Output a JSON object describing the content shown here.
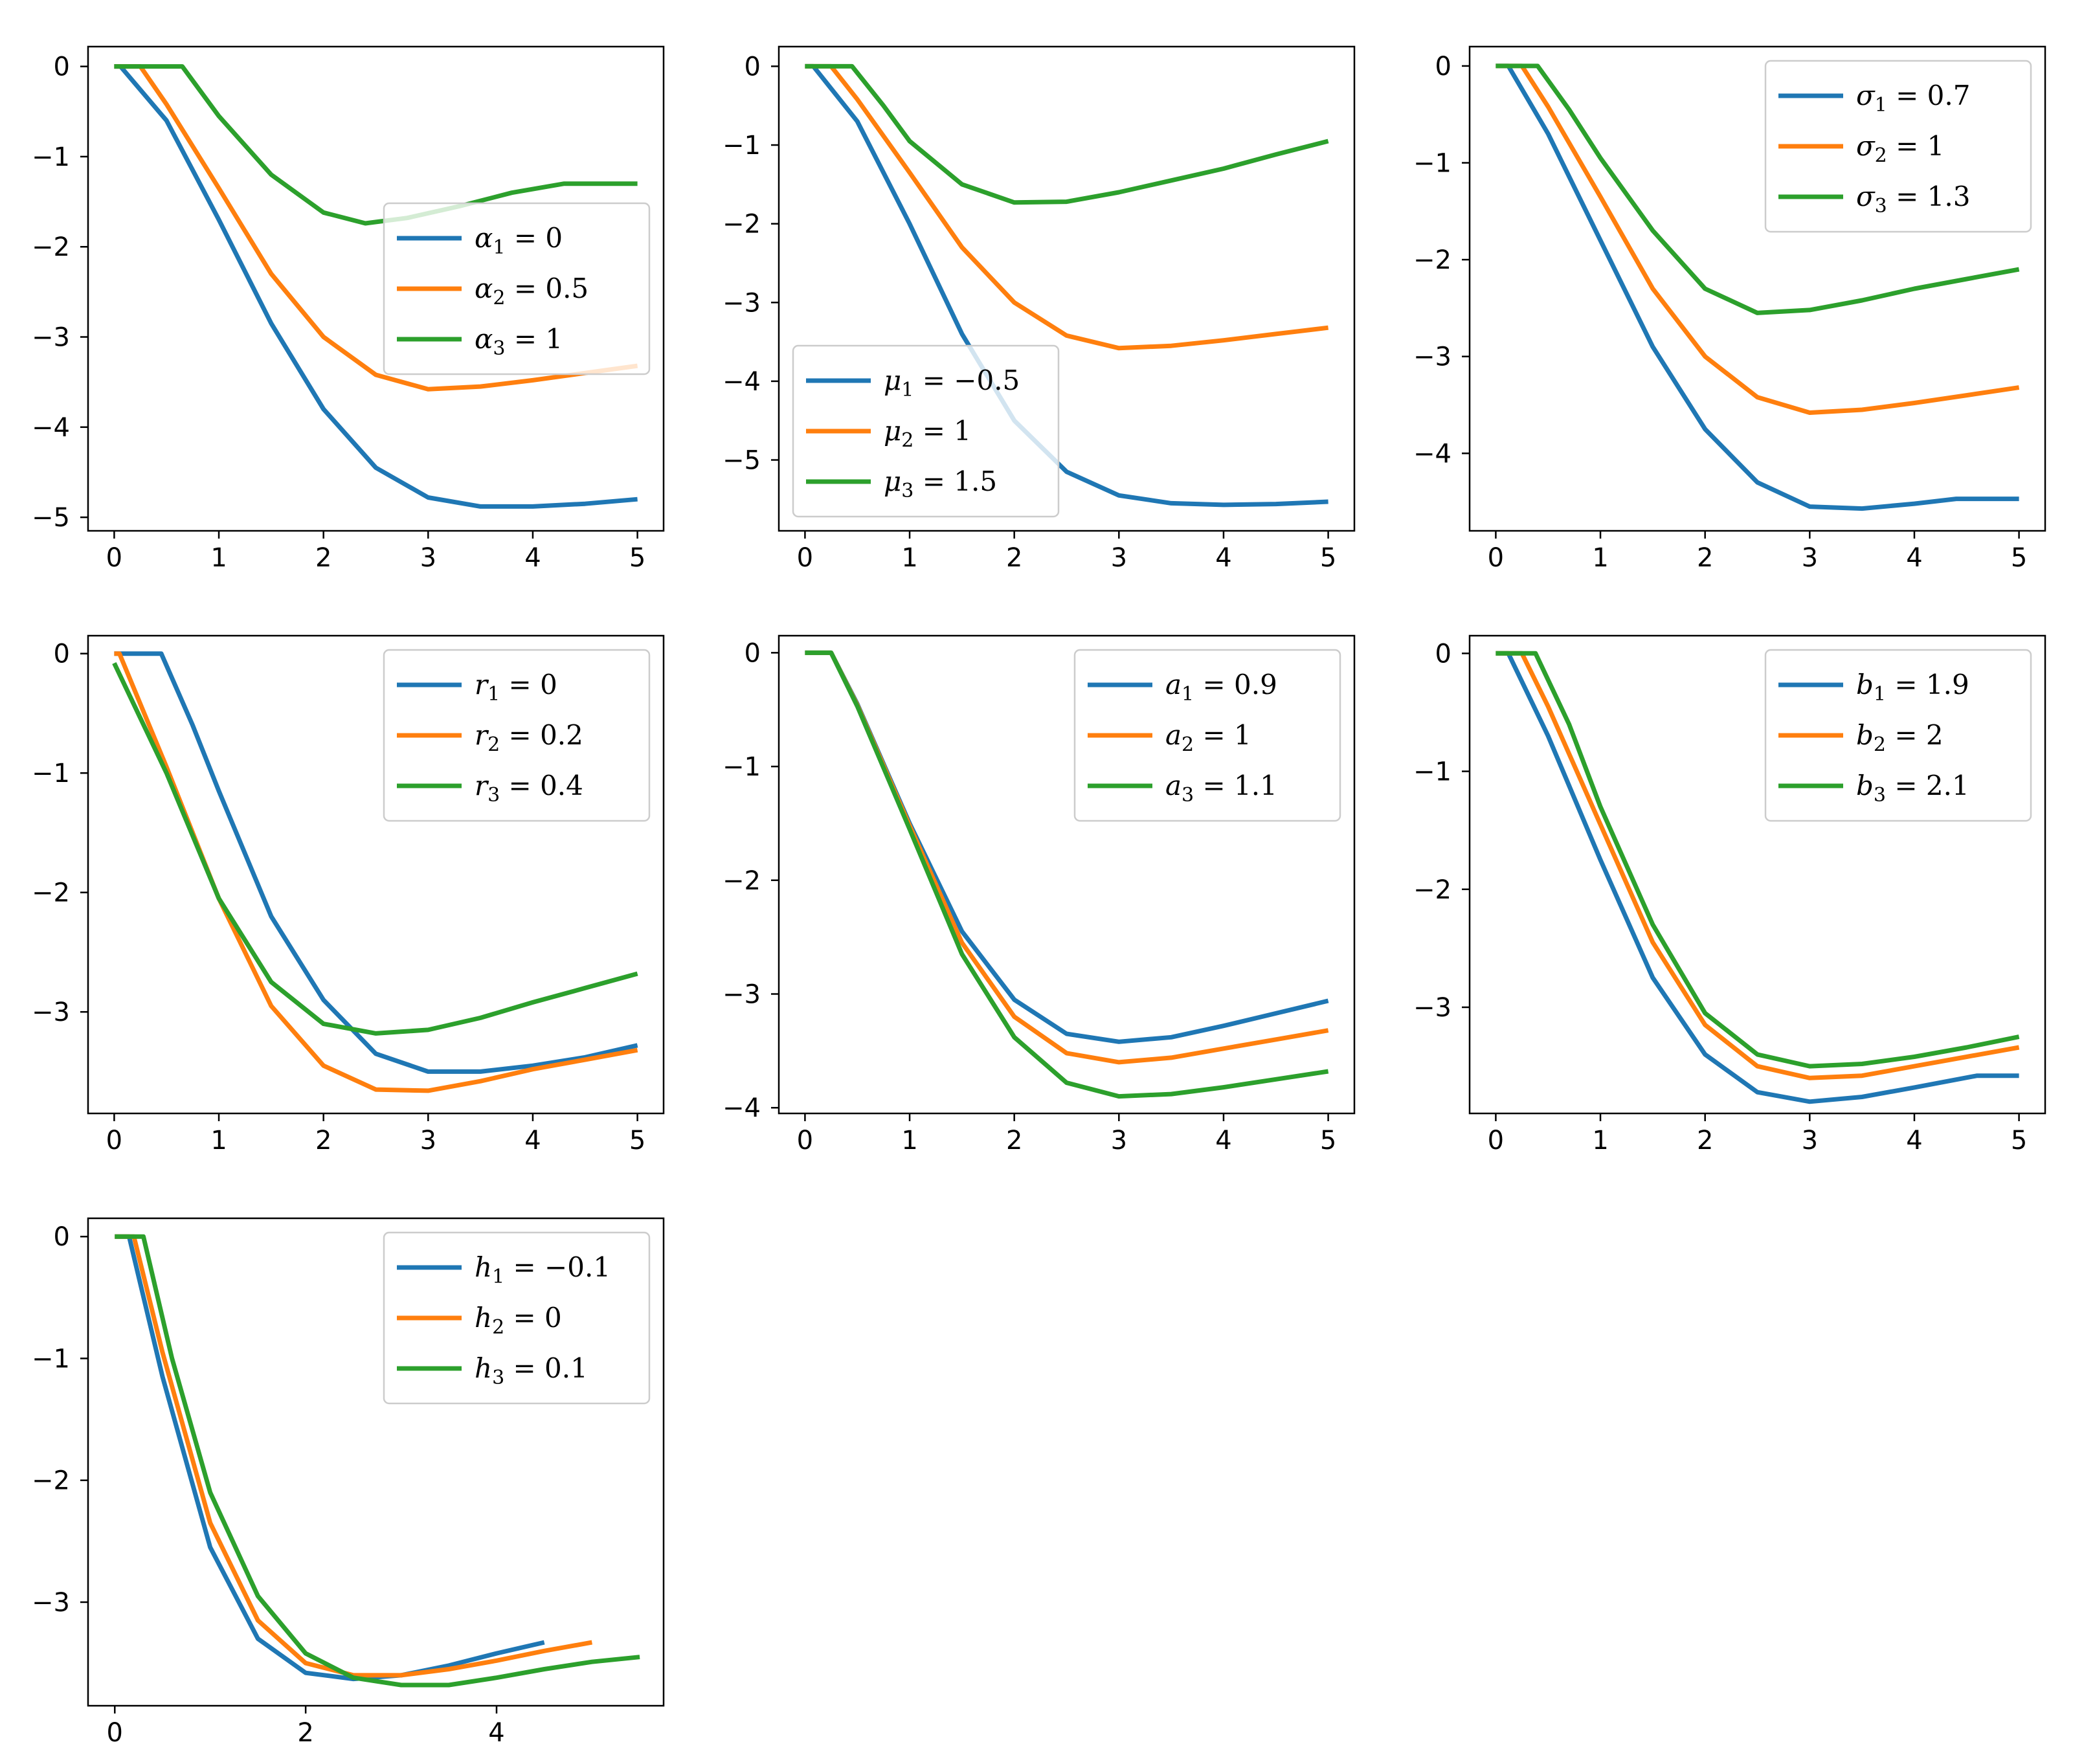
{
  "colors": {
    "series1": "#1f77b4",
    "series2": "#ff7f0e",
    "series3": "#2ca02c"
  },
  "chart_data": [
    {
      "type": "line",
      "id": "alpha",
      "xlim": [
        -0.25,
        5.25
      ],
      "ylim": [
        -5.15,
        0.22
      ],
      "xticks": [
        0,
        1,
        2,
        3,
        4,
        5
      ],
      "xtick_labels": [
        "0",
        "1",
        "2",
        "3",
        "4",
        "5"
      ],
      "yticks": [
        0,
        -1,
        -2,
        -3,
        -4,
        -5
      ],
      "ytick_labels": [
        "0",
        "−1",
        "−2",
        "−3",
        "−4",
        "−5"
      ],
      "legend_loc": "center-right",
      "series": [
        {
          "name": "α₁ = 0",
          "sym": "α",
          "sub": "1",
          "value": "0",
          "x": [
            0,
            0.06,
            0.5,
            1,
            1.5,
            2,
            2.5,
            3,
            3.5,
            4,
            4.5,
            5
          ],
          "y": [
            0,
            0,
            -0.6,
            -1.7,
            -2.85,
            -3.8,
            -4.45,
            -4.78,
            -4.88,
            -4.88,
            -4.85,
            -4.8
          ]
        },
        {
          "name": "α₂ = 0.5",
          "sym": "α",
          "sub": "2",
          "value": "0.5",
          "x": [
            0,
            0.25,
            0.5,
            1,
            1.5,
            2,
            2.5,
            3,
            3.5,
            4,
            4.5,
            5
          ],
          "y": [
            0,
            0,
            -0.42,
            -1.35,
            -2.3,
            -3.0,
            -3.42,
            -3.58,
            -3.55,
            -3.48,
            -3.4,
            -3.32
          ]
        },
        {
          "name": "α₃ = 1",
          "sym": "α",
          "sub": "3",
          "value": "1",
          "x": [
            0,
            0.65,
            1,
            1.5,
            2,
            2.4,
            2.8,
            3.3,
            3.8,
            4.3,
            4.6,
            5
          ],
          "y": [
            0,
            0,
            -0.55,
            -1.2,
            -1.62,
            -1.74,
            -1.68,
            -1.55,
            -1.4,
            -1.3,
            -1.3,
            -1.3
          ]
        }
      ]
    },
    {
      "type": "line",
      "id": "mu",
      "xlim": [
        -0.25,
        5.25
      ],
      "ylim": [
        -5.9,
        0.25
      ],
      "xticks": [
        0,
        1,
        2,
        3,
        4,
        5
      ],
      "xtick_labels": [
        "0",
        "1",
        "2",
        "3",
        "4",
        "5"
      ],
      "yticks": [
        0,
        -1,
        -2,
        -3,
        -4,
        -5
      ],
      "ytick_labels": [
        "0",
        "−1",
        "−2",
        "−3",
        "−4",
        "−5"
      ],
      "legend_loc": "lower-left",
      "series": [
        {
          "name": "μ₁ = −0.5",
          "sym": "μ",
          "sub": "1",
          "value": "−0.5",
          "x": [
            0,
            0.08,
            0.5,
            1,
            1.5,
            2,
            2.5,
            3,
            3.5,
            4,
            4.5,
            5
          ],
          "y": [
            0,
            0,
            -0.7,
            -2.0,
            -3.4,
            -4.5,
            -5.15,
            -5.45,
            -5.55,
            -5.57,
            -5.56,
            -5.53
          ]
        },
        {
          "name": "μ₂ = 1",
          "sym": "μ",
          "sub": "2",
          "value": "1",
          "x": [
            0,
            0.25,
            0.5,
            1,
            1.5,
            2,
            2.5,
            3,
            3.5,
            4,
            4.5,
            5
          ],
          "y": [
            0,
            0,
            -0.42,
            -1.35,
            -2.3,
            -3.0,
            -3.42,
            -3.58,
            -3.55,
            -3.48,
            -3.4,
            -3.32
          ]
        },
        {
          "name": "μ₃ = 1.5",
          "sym": "μ",
          "sub": "3",
          "value": "1.5",
          "x": [
            0,
            0.45,
            0.75,
            1,
            1.5,
            2,
            2.5,
            3,
            3.5,
            4,
            4.5,
            5
          ],
          "y": [
            0,
            0,
            -0.5,
            -0.95,
            -1.5,
            -1.73,
            -1.72,
            -1.6,
            -1.45,
            -1.3,
            -1.12,
            -0.95
          ]
        }
      ]
    },
    {
      "type": "line",
      "id": "sigma",
      "xlim": [
        -0.25,
        5.25
      ],
      "ylim": [
        -4.8,
        0.2
      ],
      "xticks": [
        0,
        1,
        2,
        3,
        4,
        5
      ],
      "xtick_labels": [
        "0",
        "1",
        "2",
        "3",
        "4",
        "5"
      ],
      "yticks": [
        0,
        -1,
        -2,
        -3,
        -4
      ],
      "ytick_labels": [
        "0",
        "−1",
        "−2",
        "−3",
        "−4"
      ],
      "legend_loc": "upper-right",
      "series": [
        {
          "name": "σ₁ = 0.7",
          "sym": "σ",
          "sub": "1",
          "value": "0.7",
          "x": [
            0,
            0.12,
            0.5,
            1,
            1.5,
            2,
            2.5,
            3,
            3.5,
            4,
            4.4,
            5
          ],
          "y": [
            0,
            0,
            -0.7,
            -1.8,
            -2.9,
            -3.75,
            -4.3,
            -4.55,
            -4.57,
            -4.52,
            -4.47,
            -4.47
          ]
        },
        {
          "name": "σ₂ = 1",
          "sym": "σ",
          "sub": "2",
          "value": "1",
          "x": [
            0,
            0.25,
            0.5,
            1,
            1.5,
            2,
            2.5,
            3,
            3.5,
            4,
            4.5,
            5
          ],
          "y": [
            0,
            0,
            -0.42,
            -1.35,
            -2.3,
            -3.0,
            -3.42,
            -3.58,
            -3.55,
            -3.48,
            -3.4,
            -3.32
          ]
        },
        {
          "name": "σ₃ = 1.3",
          "sym": "σ",
          "sub": "3",
          "value": "1.3",
          "x": [
            0,
            0.4,
            0.7,
            1,
            1.5,
            2,
            2.5,
            3,
            3.5,
            4,
            4.5,
            5
          ],
          "y": [
            0,
            0,
            -0.45,
            -0.95,
            -1.7,
            -2.3,
            -2.55,
            -2.52,
            -2.42,
            -2.3,
            -2.2,
            -2.1
          ]
        }
      ]
    },
    {
      "type": "line",
      "id": "r",
      "xlim": [
        -0.25,
        5.25
      ],
      "ylim": [
        -3.85,
        0.15
      ],
      "xticks": [
        0,
        1,
        2,
        3,
        4,
        5
      ],
      "xtick_labels": [
        "0",
        "1",
        "2",
        "3",
        "4",
        "5"
      ],
      "yticks": [
        0,
        -1,
        -2,
        -3
      ],
      "ytick_labels": [
        "0",
        "−1",
        "−2",
        "−3"
      ],
      "legend_loc": "upper-right",
      "series": [
        {
          "name": "r₁ = 0",
          "sym": "r",
          "sub": "1",
          "value": "0",
          "x": [
            0,
            0.45,
            0.75,
            1,
            1.5,
            2,
            2.5,
            3,
            3.5,
            4,
            4.5,
            5
          ],
          "y": [
            0,
            0,
            -0.6,
            -1.15,
            -2.2,
            -2.9,
            -3.35,
            -3.5,
            -3.5,
            -3.45,
            -3.38,
            -3.28
          ]
        },
        {
          "name": "r₂ = 0.2",
          "sym": "r",
          "sub": "2",
          "value": "0.2",
          "x": [
            0,
            0.05,
            0.5,
            1,
            1.5,
            2,
            2.5,
            3,
            3.5,
            4,
            4.5,
            5
          ],
          "y": [
            0,
            0,
            -0.95,
            -2.05,
            -2.95,
            -3.45,
            -3.65,
            -3.66,
            -3.58,
            -3.48,
            -3.4,
            -3.32
          ]
        },
        {
          "name": "r₃ = 0.4",
          "sym": "r",
          "sub": "3",
          "value": "0.4",
          "x": [
            0,
            0.5,
            1,
            1.5,
            2,
            2.5,
            3,
            3.5,
            4,
            4.5,
            5
          ],
          "y": [
            -0.08,
            -1.0,
            -2.05,
            -2.75,
            -3.1,
            -3.18,
            -3.15,
            -3.05,
            -2.92,
            -2.8,
            -2.68
          ]
        }
      ]
    },
    {
      "type": "line",
      "id": "a",
      "xlim": [
        -0.25,
        5.25
      ],
      "ylim": [
        -4.05,
        0.15
      ],
      "xticks": [
        0,
        1,
        2,
        3,
        4,
        5
      ],
      "xtick_labels": [
        "0",
        "1",
        "2",
        "3",
        "4",
        "5"
      ],
      "yticks": [
        0,
        -1,
        -2,
        -3,
        -4
      ],
      "ytick_labels": [
        "0",
        "−1",
        "−2",
        "−3",
        "−4"
      ],
      "legend_loc": "upper-right",
      "series": [
        {
          "name": "a₁ = 0.9",
          "sym": "a",
          "sub": "1",
          "value": "0.9",
          "x": [
            0,
            0.25,
            0.5,
            1,
            1.5,
            2,
            2.5,
            3,
            3.5,
            4,
            4.5,
            5
          ],
          "y": [
            0,
            0,
            -0.45,
            -1.5,
            -2.45,
            -3.05,
            -3.35,
            -3.42,
            -3.38,
            -3.28,
            -3.17,
            -3.06
          ]
        },
        {
          "name": "a₂ = 1",
          "sym": "a",
          "sub": "2",
          "value": "1",
          "x": [
            0,
            0.25,
            0.5,
            1,
            1.5,
            2,
            2.5,
            3,
            3.5,
            4,
            4.5,
            5
          ],
          "y": [
            0,
            0,
            -0.46,
            -1.52,
            -2.55,
            -3.2,
            -3.52,
            -3.6,
            -3.56,
            -3.48,
            -3.4,
            -3.32
          ]
        },
        {
          "name": "a₃ = 1.1",
          "sym": "a",
          "sub": "3",
          "value": "1.1",
          "x": [
            0,
            0.25,
            0.5,
            1,
            1.5,
            2,
            2.5,
            3,
            3.5,
            4,
            4.5,
            5
          ],
          "y": [
            0,
            0,
            -0.47,
            -1.55,
            -2.65,
            -3.38,
            -3.78,
            -3.9,
            -3.88,
            -3.82,
            -3.75,
            -3.68
          ]
        }
      ]
    },
    {
      "type": "line",
      "id": "b",
      "xlim": [
        -0.25,
        5.25
      ],
      "ylim": [
        -3.9,
        0.15
      ],
      "xticks": [
        0,
        1,
        2,
        3,
        4,
        5
      ],
      "xtick_labels": [
        "0",
        "1",
        "2",
        "3",
        "4",
        "5"
      ],
      "yticks": [
        0,
        -1,
        -2,
        -3
      ],
      "ytick_labels": [
        "0",
        "−1",
        "−2",
        "−3"
      ],
      "legend_loc": "upper-right",
      "series": [
        {
          "name": "b₁ = 1.9",
          "sym": "b",
          "sub": "1",
          "value": "1.9",
          "x": [
            0,
            0.12,
            0.5,
            1,
            1.5,
            2,
            2.5,
            3,
            3.5,
            4,
            4.6,
            5
          ],
          "y": [
            0,
            0,
            -0.7,
            -1.75,
            -2.75,
            -3.4,
            -3.72,
            -3.8,
            -3.76,
            -3.68,
            -3.58,
            -3.58
          ]
        },
        {
          "name": "b₂ = 2",
          "sym": "b",
          "sub": "2",
          "value": "2",
          "x": [
            0,
            0.25,
            0.5,
            1,
            1.5,
            2,
            2.5,
            3,
            3.5,
            4,
            4.5,
            5
          ],
          "y": [
            0,
            0,
            -0.45,
            -1.45,
            -2.45,
            -3.15,
            -3.5,
            -3.6,
            -3.58,
            -3.5,
            -3.42,
            -3.34
          ]
        },
        {
          "name": "b₃ = 2.1",
          "sym": "b",
          "sub": "3",
          "value": "2.1",
          "x": [
            0,
            0.38,
            0.7,
            1,
            1.5,
            2,
            2.5,
            3,
            3.5,
            4,
            4.5,
            5
          ],
          "y": [
            0,
            0,
            -0.6,
            -1.3,
            -2.3,
            -3.05,
            -3.4,
            -3.5,
            -3.48,
            -3.42,
            -3.34,
            -3.25
          ]
        }
      ]
    },
    {
      "type": "line",
      "id": "h",
      "xlim": [
        -0.28,
        5.75
      ],
      "ylim": [
        -3.85,
        0.15
      ],
      "xticks": [
        0,
        2,
        4
      ],
      "xtick_labels": [
        "0",
        "2",
        "4"
      ],
      "yticks": [
        0,
        -1,
        -2,
        -3
      ],
      "ytick_labels": [
        "0",
        "−1",
        "−2",
        "−3"
      ],
      "legend_loc": "upper-right",
      "series": [
        {
          "name": "h₁ = −0.1",
          "sym": "h",
          "sub": "1",
          "value": "−0.1",
          "x": [
            0,
            0.15,
            0.5,
            1,
            1.5,
            2,
            2.5,
            3,
            3.5,
            4,
            4.5
          ],
          "y": [
            0,
            0,
            -1.15,
            -2.55,
            -3.3,
            -3.58,
            -3.63,
            -3.6,
            -3.52,
            -3.42,
            -3.33
          ]
        },
        {
          "name": "h₂ = 0",
          "sym": "h",
          "sub": "2",
          "value": "0",
          "x": [
            0,
            0.2,
            0.5,
            1,
            1.5,
            2,
            2.5,
            3,
            3.5,
            4,
            4.5,
            5
          ],
          "y": [
            0,
            0,
            -0.95,
            -2.35,
            -3.15,
            -3.5,
            -3.6,
            -3.6,
            -3.55,
            -3.48,
            -3.4,
            -3.33
          ]
        },
        {
          "name": "h₃ = 0.1",
          "sym": "h",
          "sub": "3",
          "value": "0.1",
          "x": [
            0,
            0.3,
            0.6,
            1,
            1.5,
            2,
            2.5,
            3,
            3.5,
            4,
            4.5,
            5,
            5.5
          ],
          "y": [
            0,
            0,
            -1.0,
            -2.1,
            -2.95,
            -3.42,
            -3.62,
            -3.68,
            -3.68,
            -3.62,
            -3.55,
            -3.49,
            -3.45
          ]
        }
      ]
    }
  ]
}
